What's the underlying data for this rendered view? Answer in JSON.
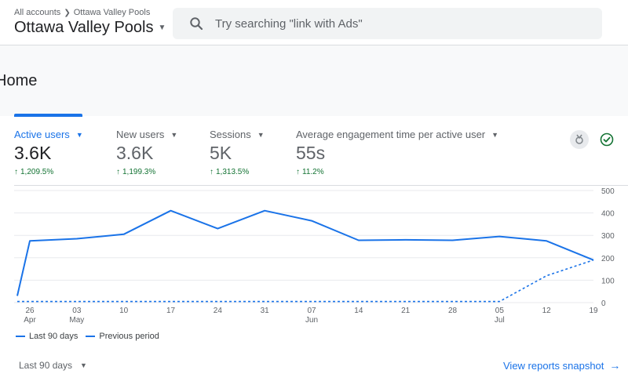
{
  "header": {
    "breadcrumb_root": "All accounts",
    "breadcrumb_account": "Ottawa Valley Pools",
    "property_name": "Ottawa Valley Pools",
    "search_placeholder": "Try searching \"link with Ads\""
  },
  "page": {
    "title": "Home"
  },
  "metrics": [
    {
      "label": "Active users",
      "value": "3.6K",
      "change": "1,209.5%",
      "active": true
    },
    {
      "label": "New users",
      "value": "3.6K",
      "change": "1,199.3%",
      "active": false
    },
    {
      "label": "Sessions",
      "value": "5K",
      "change": "1,313.5%",
      "active": false
    },
    {
      "label": "Average engagement time per active user",
      "value": "55s",
      "change": "11.2%",
      "active": false
    }
  ],
  "chart_data": {
    "type": "line",
    "x_tick_labels": [
      {
        "day": "26",
        "month": "Apr"
      },
      {
        "day": "03",
        "month": "May"
      },
      {
        "day": "10",
        "month": ""
      },
      {
        "day": "17",
        "month": ""
      },
      {
        "day": "24",
        "month": ""
      },
      {
        "day": "31",
        "month": ""
      },
      {
        "day": "07",
        "month": "Jun"
      },
      {
        "day": "14",
        "month": ""
      },
      {
        "day": "21",
        "month": ""
      },
      {
        "day": "28",
        "month": ""
      },
      {
        "day": "05",
        "month": "Jul"
      },
      {
        "day": "12",
        "month": ""
      },
      {
        "day": "19",
        "month": ""
      }
    ],
    "y_ticks": [
      "500",
      "400",
      "300",
      "200",
      "100",
      "0"
    ],
    "ylim": [
      0,
      500
    ],
    "series": [
      {
        "name": "Last 90 days",
        "style": "solid",
        "points": [
          {
            "x": "Apr 25",
            "y": 30
          },
          {
            "x": "Apr 26",
            "y": 275
          },
          {
            "x": "May 03",
            "y": 285
          },
          {
            "x": "May 10",
            "y": 305
          },
          {
            "x": "May 17",
            "y": 410
          },
          {
            "x": "May 24",
            "y": 330
          },
          {
            "x": "May 31",
            "y": 410
          },
          {
            "x": "Jun 07",
            "y": 365
          },
          {
            "x": "Jun 14",
            "y": 278
          },
          {
            "x": "Jun 21",
            "y": 280
          },
          {
            "x": "Jun 28",
            "y": 278
          },
          {
            "x": "Jul 05",
            "y": 295
          },
          {
            "x": "Jul 12",
            "y": 275
          },
          {
            "x": "Jul 19",
            "y": 190
          }
        ]
      },
      {
        "name": "Previous period",
        "style": "dashed",
        "points": [
          {
            "x": "Apr 25",
            "y": 5
          },
          {
            "x": "Jul 05",
            "y": 5
          },
          {
            "x": "Jul 12",
            "y": 120
          },
          {
            "x": "Jul 19",
            "y": 190
          }
        ]
      }
    ],
    "grid": true,
    "legend_position": "bottom-left"
  },
  "footer": {
    "range_label": "Last 90 days",
    "snapshot_link": "View reports snapshot"
  },
  "colors": {
    "accent": "#1a73e8",
    "positive": "#137333"
  }
}
